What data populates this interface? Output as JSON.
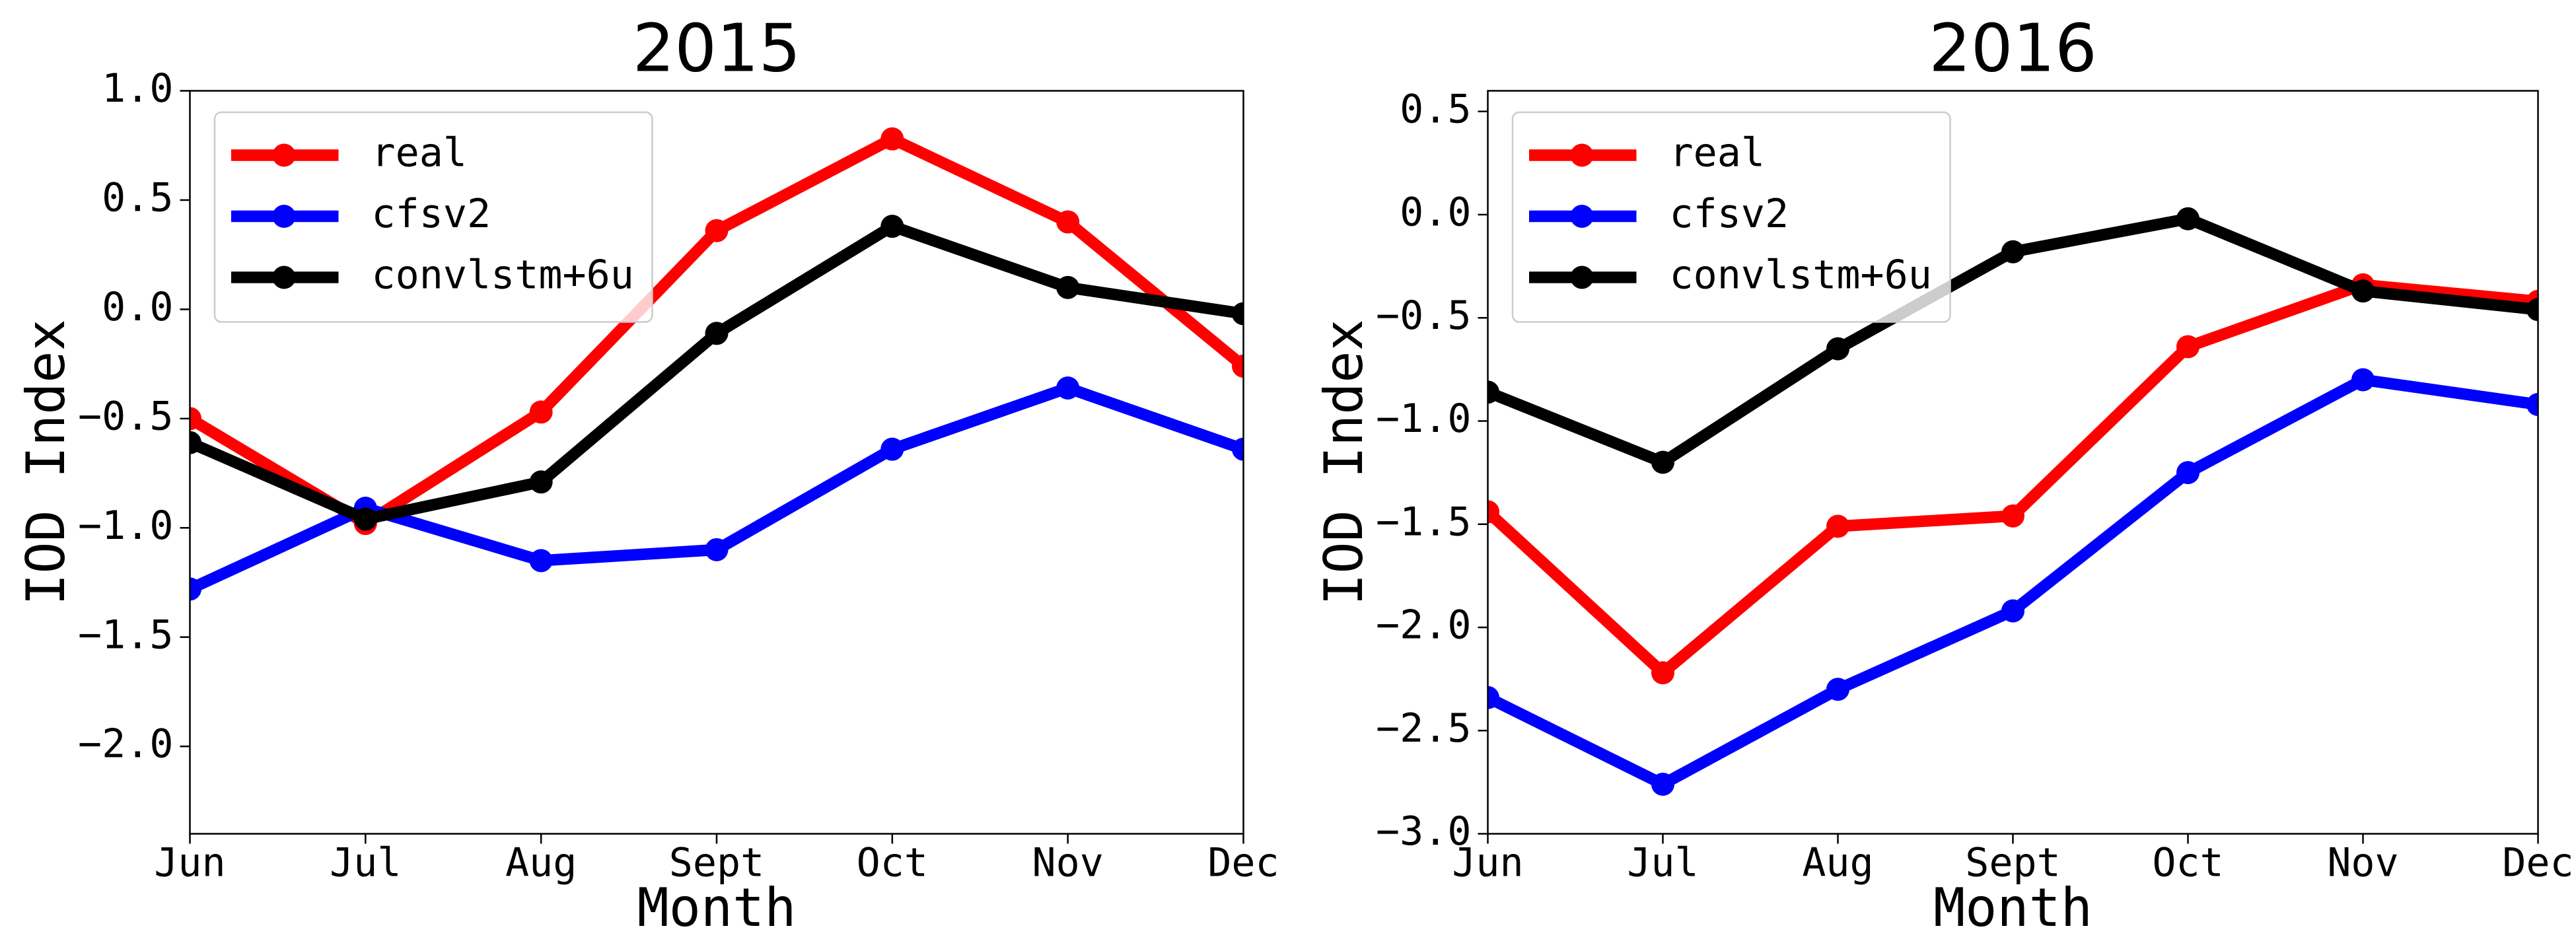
{
  "chart_data": [
    {
      "type": "line",
      "title": "2015",
      "x_label": "Month",
      "y_label": "IOD Index",
      "categories": [
        "Jun",
        "Jul",
        "Aug",
        "Sept",
        "Oct",
        "Nov",
        "Dec"
      ],
      "ylim": [
        -2.4,
        1.0
      ],
      "yticks": [
        {
          "value": -2.0,
          "label": "−2.0"
        },
        {
          "value": -1.5,
          "label": "−1.5"
        },
        {
          "value": -1.0,
          "label": "−1.0"
        },
        {
          "value": -0.5,
          "label": "−0.5"
        },
        {
          "value": 0.0,
          "label": "0.0"
        },
        {
          "value": 0.5,
          "label": "0.5"
        },
        {
          "value": 1.0,
          "label": "1.0"
        }
      ],
      "legend": "upper left",
      "series": [
        {
          "name": "real",
          "color": "#ff0000",
          "values": [
            -0.5,
            -0.98,
            -0.47,
            0.36,
            0.78,
            0.4,
            -0.26
          ]
        },
        {
          "name": "cfsv2",
          "color": "#0000ff",
          "values": [
            -1.28,
            -0.91,
            -1.15,
            -1.1,
            -0.64,
            -0.36,
            -0.64
          ]
        },
        {
          "name": "convlstm+6u",
          "color": "#000000",
          "values": [
            -0.61,
            -0.96,
            -0.79,
            -0.11,
            0.38,
            0.1,
            -0.02
          ]
        }
      ]
    },
    {
      "type": "line",
      "title": "2016",
      "x_label": "Month",
      "y_label": "IOD Index",
      "categories": [
        "Jun",
        "Jul",
        "Aug",
        "Sept",
        "Oct",
        "Nov",
        "Dec"
      ],
      "ylim": [
        -3.0,
        0.6
      ],
      "yticks": [
        {
          "value": -3.0,
          "label": "−3.0"
        },
        {
          "value": -2.5,
          "label": "−2.5"
        },
        {
          "value": -2.0,
          "label": "−2.0"
        },
        {
          "value": -1.5,
          "label": "−1.5"
        },
        {
          "value": -1.0,
          "label": "−1.0"
        },
        {
          "value": -0.5,
          "label": "−0.5"
        },
        {
          "value": 0.0,
          "label": "0.0"
        },
        {
          "value": 0.5,
          "label": "0.5"
        }
      ],
      "legend": "upper left",
      "series": [
        {
          "name": "real",
          "color": "#ff0000",
          "values": [
            -1.44,
            -2.22,
            -1.51,
            -1.46,
            -0.64,
            -0.34,
            -0.42
          ]
        },
        {
          "name": "cfsv2",
          "color": "#0000ff",
          "values": [
            -2.34,
            -2.76,
            -2.3,
            -1.92,
            -1.25,
            -0.8,
            -0.92
          ]
        },
        {
          "name": "convlstm+6u",
          "color": "#000000",
          "values": [
            -0.86,
            -1.2,
            -0.65,
            -0.18,
            -0.02,
            -0.37,
            -0.46
          ]
        }
      ]
    }
  ]
}
